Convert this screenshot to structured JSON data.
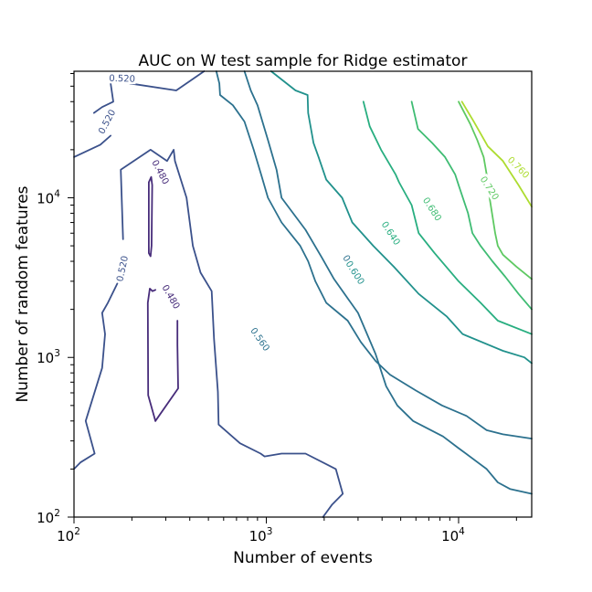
{
  "chart_data": {
    "type": "contour",
    "title": "AUC on W test sample for Ridge estimator",
    "xlabel": "Number of events",
    "ylabel": "Number of random features",
    "xscale": "log",
    "yscale": "log",
    "xlim": [
      100,
      24000
    ],
    "ylim": [
      100,
      62000
    ],
    "xticks": [
      {
        "value": 100,
        "base": "10",
        "exp": "2"
      },
      {
        "value": 1000,
        "base": "10",
        "exp": "3"
      },
      {
        "value": 10000,
        "base": "10",
        "exp": "4"
      }
    ],
    "yticks": [
      {
        "value": 100,
        "base": "10",
        "exp": "2"
      },
      {
        "value": 1000,
        "base": "10",
        "exp": "3"
      },
      {
        "value": 10000,
        "base": "10",
        "exp": "4"
      }
    ],
    "grid": false,
    "levels": [
      {
        "level": 0.48,
        "label": "0.480",
        "color": "#472c7a",
        "paths": [
          [
            [
              245,
              4500
            ],
            [
              245,
              12500
            ],
            [
              252,
              13500
            ],
            [
              255,
              12000
            ],
            [
              253,
              5000
            ],
            [
              250,
              4300
            ],
            [
              245,
              4500
            ]
          ],
          [
            [
              265,
              400
            ],
            [
              348,
              640
            ],
            [
              345,
              1200
            ],
            [
              345,
              1700
            ]
          ],
          [
            [
              265,
              400
            ],
            [
              243,
              580
            ],
            [
              242,
              2200
            ],
            [
              248,
              2700
            ],
            [
              256,
              2600
            ],
            [
              265,
              2650
            ]
          ]
        ],
        "labels": [
          {
            "x": 282,
            "y": 14500,
            "rot": 62
          },
          {
            "x": 320,
            "y": 2400,
            "rot": 60
          }
        ]
      },
      {
        "level": 0.52,
        "label": "0.520",
        "color": "#3b518b",
        "paths": [
          [
            [
              100,
              18000
            ],
            [
              137,
              21500
            ],
            [
              155,
              24500
            ]
          ],
          [
            [
              127,
              34000
            ],
            [
              140,
              37000
            ],
            [
              160,
              40000
            ],
            [
              155,
              52000
            ]
          ],
          [
            [
              195,
              52000
            ],
            [
              340,
              47000
            ],
            [
              475,
              62000
            ]
          ],
          [
            [
              100,
              200
            ],
            [
              108,
              220
            ],
            [
              128,
              250
            ],
            [
              115,
              400
            ],
            [
              140,
              860
            ],
            [
              145,
              1400
            ],
            [
              140,
              1900
            ],
            [
              150,
              2200
            ],
            [
              168,
              2900
            ]
          ],
          [
            [
              180,
              5500
            ],
            [
              175,
              15000
            ],
            [
              250,
              20000
            ],
            [
              305,
              17000
            ],
            [
              330,
              20000
            ],
            [
              335,
              17000
            ],
            [
              385,
              10000
            ],
            [
              415,
              5000
            ],
            [
              455,
              3400
            ],
            [
              520,
              2600
            ],
            [
              535,
              1300
            ],
            [
              560,
              610
            ],
            [
              565,
              380
            ],
            [
              730,
              290
            ],
            [
              935,
              250
            ],
            [
              980,
              240
            ],
            [
              1200,
              250
            ],
            [
              1600,
              250
            ],
            [
              2300,
              200
            ],
            [
              2500,
              140
            ],
            [
              2200,
              120
            ],
            [
              1970,
              100
            ]
          ]
        ],
        "labels": [
          {
            "x": 178,
            "y": 56000,
            "rot": 2
          },
          {
            "x": 148,
            "y": 30000,
            "rot": -62
          },
          {
            "x": 178,
            "y": 3600,
            "rot": -78
          }
        ]
      },
      {
        "level": 0.56,
        "label": "0.560",
        "color": "#2c718e",
        "paths": [
          [
            [
              770,
              62000
            ],
            [
              830,
              47000
            ],
            [
              900,
              38000
            ],
            [
              1020,
              23000
            ],
            [
              1130,
              15000
            ],
            [
              1200,
              10000
            ],
            [
              1600,
              6300
            ],
            [
              1950,
              4200
            ],
            [
              2250,
              3100
            ],
            [
              3000,
              1900
            ],
            [
              3700,
              1050
            ],
            [
              4200,
              660
            ],
            [
              4800,
              500
            ],
            [
              5800,
              400
            ],
            [
              8300,
              320
            ],
            [
              10000,
              270
            ],
            [
              14000,
              200
            ],
            [
              16000,
              165
            ],
            [
              18500,
              150
            ],
            [
              24000,
              140
            ]
          ],
          [
            [
              550,
              62000
            ],
            [
              570,
              52000
            ],
            [
              575,
              44000
            ],
            [
              670,
              38000
            ],
            [
              770,
              30000
            ],
            [
              860,
              20000
            ],
            [
              940,
              14000
            ],
            [
              1020,
              10000
            ],
            [
              1200,
              7000
            ],
            [
              1500,
              5000
            ],
            [
              1650,
              4000
            ],
            [
              1800,
              3000
            ],
            [
              2050,
              2200
            ],
            [
              2650,
              1700
            ],
            [
              3100,
              1250
            ],
            [
              3700,
              950
            ],
            [
              4400,
              780
            ],
            [
              6000,
              620
            ],
            [
              8200,
              500
            ],
            [
              11000,
              430
            ],
            [
              14000,
              350
            ],
            [
              17000,
              330
            ],
            [
              24000,
              310
            ]
          ]
        ],
        "labels": [
          {
            "x": 930,
            "y": 1300,
            "rot": 55
          },
          {
            "x": 2800,
            "y": 3700,
            "rot": 57
          }
        ]
      },
      {
        "level": 0.6,
        "label": "0.600",
        "color": "#21918c",
        "paths": [
          [
            [
              1060,
              62000
            ],
            [
              1420,
              47000
            ],
            [
              1640,
              44000
            ],
            [
              1650,
              34000
            ],
            [
              1760,
              22000
            ],
            [
              1870,
              18000
            ],
            [
              2050,
              13000
            ],
            [
              2480,
              10000
            ],
            [
              2800,
              7000
            ],
            [
              3600,
              5000
            ],
            [
              4600,
              3700
            ],
            [
              6200,
              2500
            ],
            [
              8700,
              1800
            ],
            [
              10500,
              1400
            ],
            [
              17000,
              1100
            ],
            [
              22000,
              1000
            ],
            [
              24000,
              920
            ]
          ]
        ],
        "labels": [
          {
            "x": 2900,
            "y": 3400,
            "rot": 57
          }
        ]
      },
      {
        "level": 0.64,
        "label": "0.640",
        "color": "#28ae80",
        "paths": [
          [
            [
              3200,
              40000
            ],
            [
              3450,
              28000
            ],
            [
              3950,
              20000
            ],
            [
              4700,
              14000
            ],
            [
              4900,
              12500
            ],
            [
              5700,
              9000
            ],
            [
              6200,
              6000
            ],
            [
              7500,
              4500
            ],
            [
              10000,
              3000
            ],
            [
              13000,
              2200
            ],
            [
              16000,
              1700
            ],
            [
              24000,
              1400
            ]
          ]
        ],
        "labels": [
          {
            "x": 4450,
            "y": 6000,
            "rot": 57
          }
        ]
      },
      {
        "level": 0.68,
        "label": "0.680",
        "color": "#3fbc73",
        "paths": [
          [
            [
              5700,
              40000
            ],
            [
              6150,
              27000
            ],
            [
              7300,
              22000
            ],
            [
              8500,
              18000
            ],
            [
              9000,
              16000
            ],
            [
              9600,
              14000
            ],
            [
              10000,
              12000
            ],
            [
              11200,
              8000
            ],
            [
              11800,
              6000
            ],
            [
              13000,
              5000
            ],
            [
              15000,
              4000
            ],
            [
              17500,
              3200
            ],
            [
              20500,
              2500
            ],
            [
              24000,
              2000
            ]
          ]
        ],
        "labels": [
          {
            "x": 7300,
            "y": 8500,
            "rot": 57
          }
        ]
      },
      {
        "level": 0.72,
        "label": "0.720",
        "color": "#5ec962",
        "paths": [
          [
            [
              10000,
              40000
            ],
            [
              11500,
              29000
            ],
            [
              12500,
              23000
            ],
            [
              13500,
              18000
            ],
            [
              14000,
              14000
            ],
            [
              14500,
              10000
            ],
            [
              15500,
              6000
            ],
            [
              16000,
              5000
            ],
            [
              17000,
              4400
            ],
            [
              20000,
              3700
            ],
            [
              24000,
              3100
            ]
          ]
        ],
        "labels": [
          {
            "x": 14500,
            "y": 11500,
            "rot": 57
          }
        ]
      },
      {
        "level": 0.76,
        "label": "0.760",
        "color": "#addc30",
        "paths": [
          [
            [
              10400,
              40000
            ],
            [
              12000,
              30000
            ],
            [
              14200,
              21000
            ],
            [
              17000,
              17000
            ],
            [
              20500,
              12000
            ],
            [
              24000,
              8800
            ]
          ]
        ],
        "labels": [
          {
            "x": 20500,
            "y": 15500,
            "rot": 45
          }
        ]
      }
    ]
  }
}
